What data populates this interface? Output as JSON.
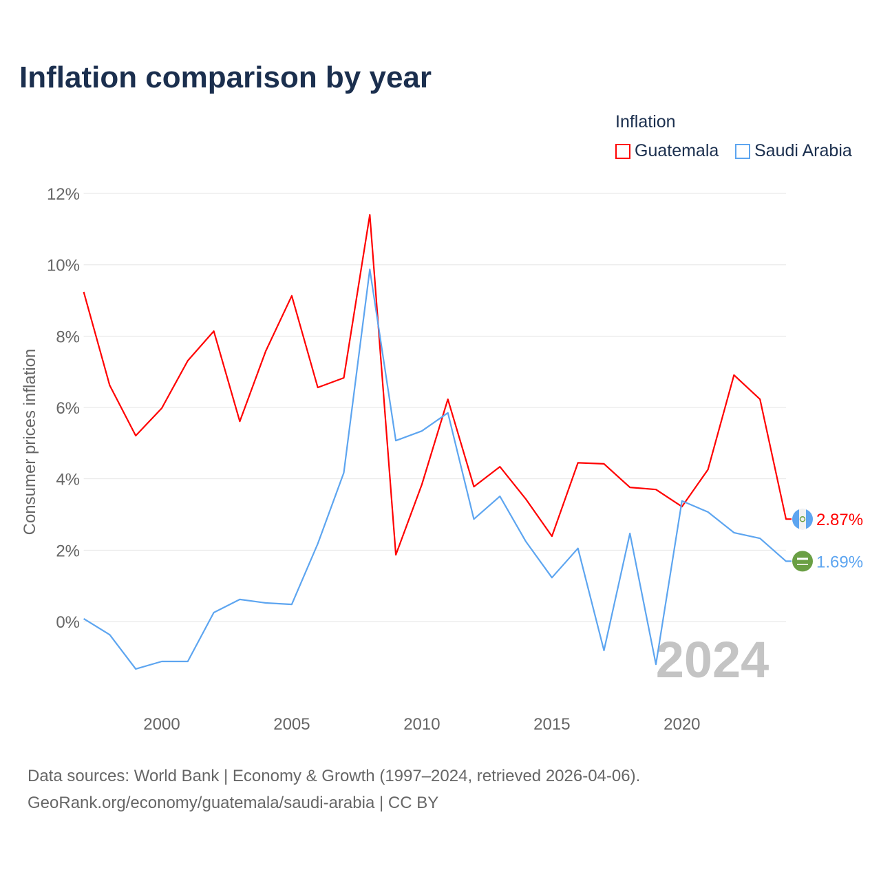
{
  "title": "Inflation comparison by year",
  "legend": {
    "title": "Inflation",
    "items": [
      {
        "label": "Guatemala",
        "color": "#ff0000"
      },
      {
        "label": "Saudi Arabia",
        "color": "#5da5f0"
      }
    ]
  },
  "footer": {
    "line1": "Data sources: World Bank | Economy & Growth (1997–2024, retrieved 2026-04-06).",
    "line2": "GeoRank.org/economy/guatemala/saudi-arabia | CC BY"
  },
  "watermark_year": "2024",
  "chart_data": {
    "type": "line",
    "title": "Inflation comparison by year",
    "ylabel": "Consumer prices inflation",
    "xlabel": "",
    "xlim": [
      1997,
      2024
    ],
    "ylim": [
      -2.2,
      12
    ],
    "yticks": [
      0,
      2,
      4,
      6,
      8,
      10,
      12
    ],
    "ytick_labels": [
      "0%",
      "2%",
      "4%",
      "6%",
      "8%",
      "10%",
      "12%"
    ],
    "xticks": [
      2000,
      2005,
      2010,
      2015,
      2020
    ],
    "xtick_labels": [
      "2000",
      "2005",
      "2010",
      "2015",
      "2020"
    ],
    "grid": true,
    "legend_position": "top-right",
    "x": [
      1997,
      1998,
      1999,
      2000,
      2001,
      2002,
      2003,
      2004,
      2005,
      2006,
      2007,
      2008,
      2009,
      2010,
      2011,
      2012,
      2013,
      2014,
      2015,
      2016,
      2017,
      2018,
      2019,
      2020,
      2021,
      2022,
      2023,
      2024
    ],
    "series": [
      {
        "name": "Guatemala",
        "color": "#ff0000",
        "end_label": "2.87%",
        "values": [
          9.24,
          6.62,
          5.21,
          5.98,
          7.31,
          8.14,
          5.61,
          7.58,
          9.13,
          6.56,
          6.83,
          11.4,
          1.87,
          3.84,
          6.23,
          3.78,
          4.34,
          3.43,
          2.39,
          4.45,
          4.42,
          3.76,
          3.7,
          3.22,
          4.26,
          6.91,
          6.23,
          2.87
        ]
      },
      {
        "name": "Saudi Arabia",
        "color": "#5da5f0",
        "end_label": "1.69%",
        "values": [
          0.08,
          -0.37,
          -1.33,
          -1.12,
          -1.12,
          0.25,
          0.62,
          0.52,
          0.48,
          2.18,
          4.17,
          9.87,
          5.07,
          5.34,
          5.85,
          2.87,
          3.51,
          2.24,
          1.23,
          2.05,
          -0.81,
          2.47,
          -1.2,
          3.38,
          3.07,
          2.49,
          2.33,
          1.69
        ]
      }
    ]
  }
}
